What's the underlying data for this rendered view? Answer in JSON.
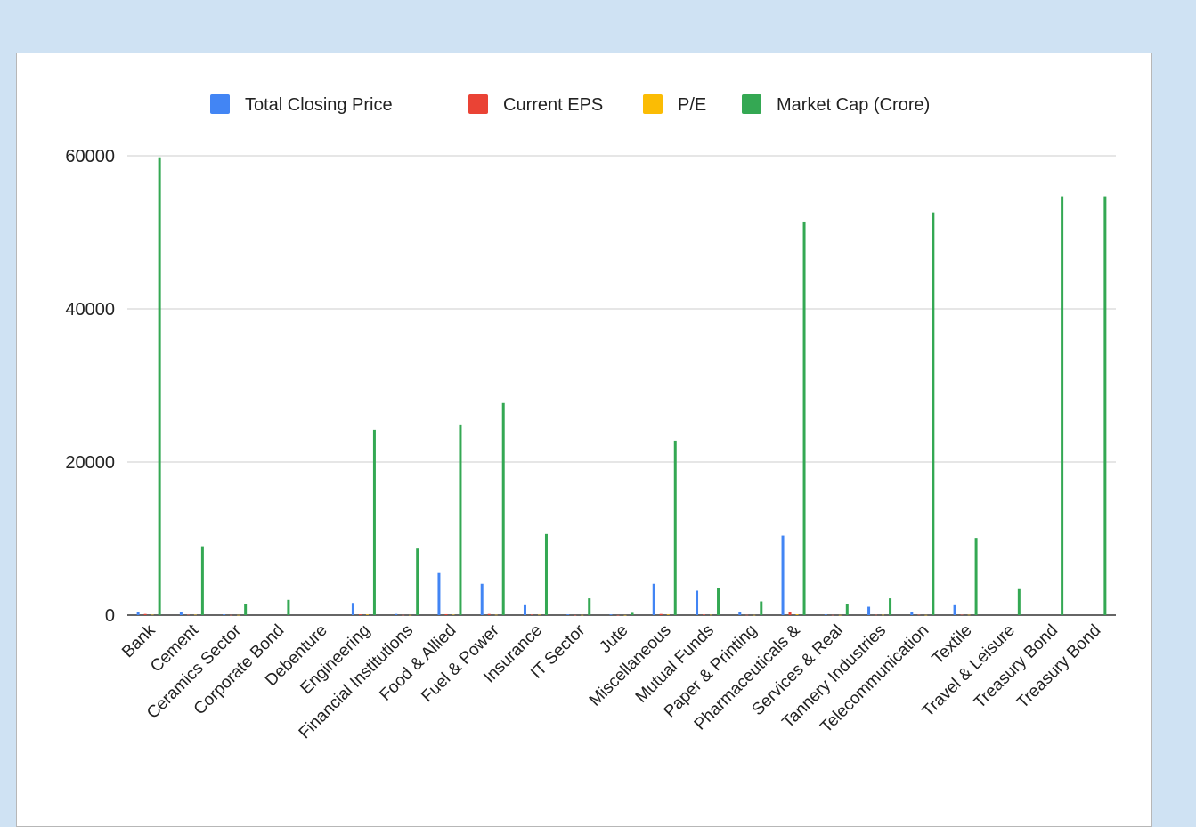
{
  "chart_data": {
    "type": "bar",
    "title": "",
    "xlabel": "",
    "ylabel": "",
    "ylim": [
      0,
      68000
    ],
    "yticks": [
      0,
      20000,
      40000,
      60000
    ],
    "grid": true,
    "legend_position": "top",
    "categories": [
      "Bank",
      "Cement",
      "Ceramics Sector",
      "Corporate Bond",
      "Debenture",
      "Engineering",
      "Financial Institutions",
      "Food & Allied",
      "Fuel & Power",
      "Insurance",
      "IT Sector",
      "Jute",
      "Miscellaneous",
      "Mutual Funds",
      "Paper & Printing",
      "Pharmaceuticals &",
      "Services & Real",
      "Tannery Industries",
      "Telecommunication",
      "Textile",
      "Travel & Leisure",
      "Treasury Bond",
      "Treasury Bond"
    ],
    "series": [
      {
        "name": "Total Closing Price",
        "color": "#4285f4",
        "values": [
          450,
          400,
          100,
          0,
          0,
          1600,
          150,
          5500,
          4100,
          1300,
          100,
          100,
          4100,
          3200,
          400,
          10400,
          100,
          1100,
          400,
          1300,
          0,
          0,
          0
        ]
      },
      {
        "name": "Current EPS",
        "color": "#ea4335",
        "values": [
          150,
          50,
          20,
          0,
          0,
          100,
          20,
          120,
          150,
          80,
          10,
          10,
          150,
          80,
          30,
          350,
          20,
          40,
          50,
          50,
          0,
          0,
          0
        ]
      },
      {
        "name": "P/E",
        "color": "#fbbc04",
        "values": [
          50,
          50,
          20,
          0,
          0,
          80,
          20,
          60,
          40,
          50,
          20,
          10,
          80,
          40,
          20,
          100,
          20,
          40,
          20,
          40,
          0,
          0,
          0
        ]
      },
      {
        "name": "Market Cap (Crore)",
        "color": "#34a853",
        "values": [
          59800,
          9000,
          1500,
          2000,
          0,
          24200,
          8700,
          24900,
          27700,
          10600,
          2200,
          300,
          22800,
          3600,
          1800,
          51400,
          1500,
          2200,
          52600,
          10100,
          3400,
          54700,
          54700
        ]
      }
    ]
  }
}
